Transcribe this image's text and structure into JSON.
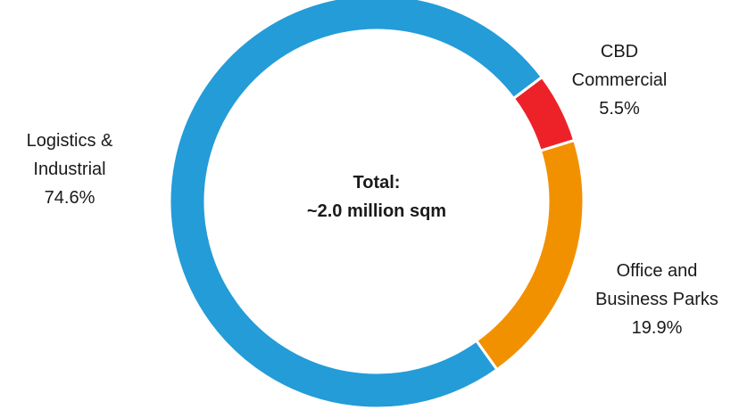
{
  "chart_data": {
    "type": "pie",
    "title": "",
    "center_text": [
      "Total:",
      "~2.0 million sqm"
    ],
    "slices": [
      {
        "label_lines": [
          "CBD",
          "Commercial"
        ],
        "value": 5.5,
        "value_label": "5.5%",
        "color": "#ED2229"
      },
      {
        "label_lines": [
          "Office and",
          "Business Parks"
        ],
        "value": 19.9,
        "value_label": "19.9%",
        "color": "#F29100"
      },
      {
        "label_lines": [
          "Logistics &",
          "Industrial"
        ],
        "value": 74.6,
        "value_label": "74.6%",
        "color": "#239CD8"
      }
    ]
  }
}
